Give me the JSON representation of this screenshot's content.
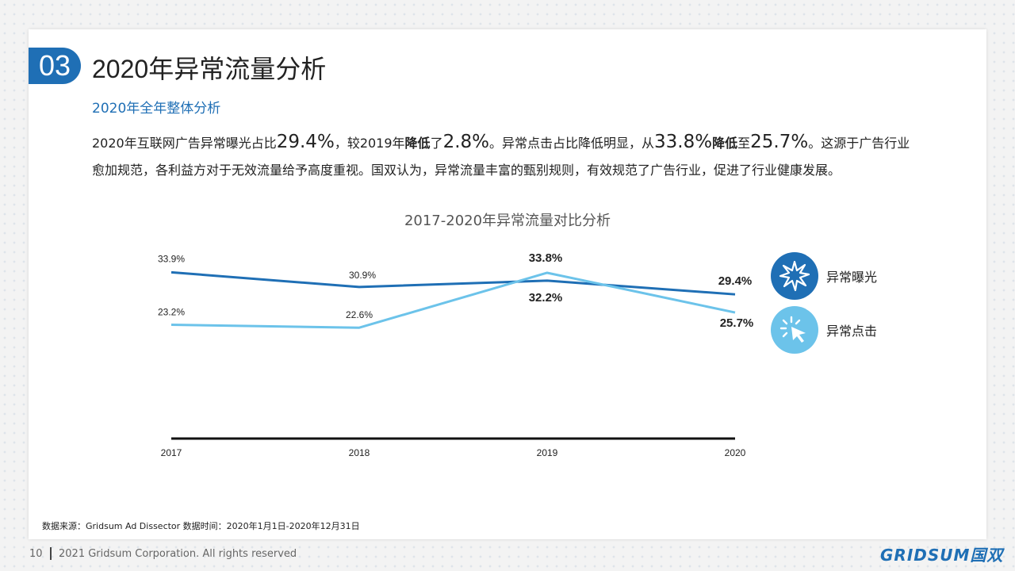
{
  "header": {
    "section_number": "03",
    "title": "2020年异常流量分析",
    "subtitle": "2020年全年整体分析"
  },
  "paragraph": {
    "p1": "2020年互联网广告异常曝光占比",
    "v1": "29.4%",
    "p2": "，较2019年",
    "b1": "降低",
    "p3": "了",
    "v2": "2.8%",
    "p4": "。异常点击占比降低明显，从",
    "v3": "33.8%",
    "b2": "降低",
    "p5": "至",
    "v4": "25.7%",
    "p6": "。这源于广告行业愈加规范，各利益方对于无效流量给予高度重视。国双认为，异常流量丰富的甄别规则，有效规范了广告行业，促进了行业健康发展。"
  },
  "chart_data": {
    "type": "line",
    "title": "2017-2020年异常流量对比分析",
    "categories": [
      "2017",
      "2018",
      "2019",
      "2020"
    ],
    "series": [
      {
        "name": "异常曝光",
        "values": [
          33.9,
          30.9,
          32.2,
          29.4
        ],
        "labels": [
          "33.9%",
          "30.9%",
          "32.2%",
          "29.4%"
        ],
        "color": "#1f6fb5",
        "icon": "burst-icon"
      },
      {
        "name": "异常点击",
        "values": [
          23.2,
          22.6,
          33.8,
          25.7
        ],
        "labels": [
          "23.2%",
          "22.6%",
          "33.8%",
          "25.7%"
        ],
        "color": "#6cc3ea",
        "icon": "cursor-click-icon"
      }
    ],
    "ylim": [
      0,
      38
    ],
    "grid": false,
    "legend": "right"
  },
  "footer": {
    "source": "数据来源：Gridsum Ad Dissector 数据时间：2020年1月1日-2020年12月31日",
    "page_number": "10",
    "copyright": "2021 Gridsum Corporation. All rights reserved",
    "logo": "GRIDSUM国双"
  }
}
